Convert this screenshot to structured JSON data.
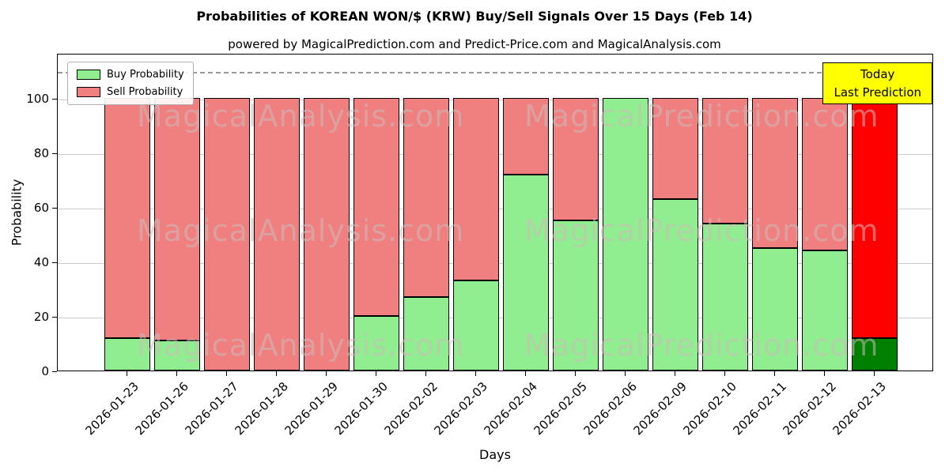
{
  "chart_data": {
    "type": "bar",
    "stacked": true,
    "title": "Probabilities of KOREAN WON/$ (KRW) Buy/Sell Signals Over 15 Days (Feb 14)",
    "subtitle": "powered by MagicalPrediction.com and Predict-Price.com and MagicalAnalysis.com",
    "xlabel": "Days",
    "ylabel": "Probability",
    "categories": [
      "2026-01-23",
      "2026-01-26",
      "2026-01-27",
      "2026-01-28",
      "2026-01-29",
      "2026-01-30",
      "2026-02-02",
      "2026-02-03",
      "2026-02-04",
      "2026-02-05",
      "2026-02-06",
      "2026-02-09",
      "2026-02-10",
      "2026-02-11",
      "2026-02-12",
      "2026-02-13"
    ],
    "series": [
      {
        "name": "Buy Probability",
        "color": "#90EE90",
        "last_bar_color": "#008000",
        "values": [
          12,
          11,
          0,
          0,
          0,
          20,
          27,
          33,
          72,
          55,
          100,
          63,
          54,
          45,
          44,
          12
        ]
      },
      {
        "name": "Sell Probability",
        "color": "#F08080",
        "last_bar_color": "#FF0000",
        "values": [
          88,
          89,
          100,
          100,
          100,
          80,
          73,
          67,
          28,
          45,
          0,
          37,
          46,
          55,
          56,
          88
        ]
      }
    ],
    "yticks": [
      0,
      20,
      40,
      60,
      80,
      100
    ],
    "ylim": [
      0,
      116.5
    ],
    "dashed_line_y": 110,
    "grid": true,
    "legend_position": "upper-left",
    "bar_edge_color": "#000000",
    "annotation": {
      "line1": "Today",
      "line2": "Last Prediction",
      "bg_color": "#FFFF00"
    },
    "watermarks": [
      "MagicalAnalysis.com",
      "MagicalPrediction.com"
    ]
  }
}
